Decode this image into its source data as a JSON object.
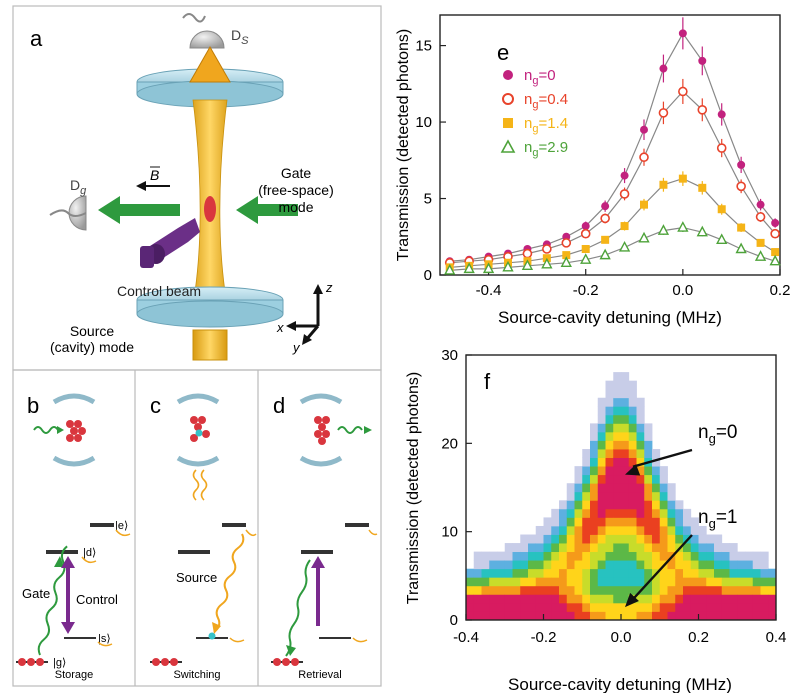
{
  "panels": {
    "a": {
      "letter": "a",
      "detector_source": "D",
      "detector_source_sub": "S",
      "detector_gate": "D",
      "detector_gate_sub": "g",
      "b_field": "B",
      "gate_label": [
        "Gate",
        "(free-space)",
        "mode"
      ],
      "control_beam": "Control beam",
      "source_label": [
        "Source",
        "(cavity) mode"
      ],
      "axis_z": "z",
      "axis_x": "x",
      "axis_y": "y"
    },
    "b": {
      "letter": "b",
      "caption": "Storage",
      "gate": "Gate",
      "control": "Control",
      "level_e": "|e⟩",
      "level_d": "|d⟩",
      "level_s": "|s⟩",
      "level_g": "|g⟩"
    },
    "c": {
      "letter": "c",
      "caption": "Switching",
      "source": "Source"
    },
    "d": {
      "letter": "d",
      "caption": "Retrieval"
    }
  },
  "chart_data": [
    {
      "panel": "e",
      "type": "scatter",
      "ylabel": "Transmission (detected photons)",
      "xlabel": "Source-cavity detuning (MHz)",
      "xlim": [
        -0.5,
        0.2
      ],
      "ylim": [
        0,
        17
      ],
      "xticks": [
        "-0.4",
        "-0.2",
        "0.0",
        "0.2"
      ],
      "yticks": [
        "0",
        "5",
        "10",
        "15"
      ],
      "legend_position": "top-left",
      "x": [
        -0.48,
        -0.44,
        -0.4,
        -0.36,
        -0.32,
        -0.28,
        -0.24,
        -0.2,
        -0.16,
        -0.12,
        -0.08,
        -0.04,
        0.0,
        0.04,
        0.08,
        0.12,
        0.16,
        0.19
      ],
      "series": [
        {
          "name": "n",
          "name_sub": "g",
          "name_value": "=0",
          "color": "#c2227e",
          "marker": "filled-circle",
          "values": [
            0.9,
            1.0,
            1.2,
            1.4,
            1.7,
            2.0,
            2.5,
            3.2,
            4.5,
            6.5,
            9.5,
            13.5,
            15.8,
            14.0,
            10.5,
            7.2,
            4.6,
            3.4
          ]
        },
        {
          "name": "n",
          "name_sub": "g",
          "name_value": "=0.4",
          "color": "#e8432b",
          "marker": "open-circle",
          "values": [
            0.8,
            0.9,
            1.0,
            1.2,
            1.4,
            1.7,
            2.1,
            2.7,
            3.7,
            5.3,
            7.7,
            10.6,
            12.0,
            10.8,
            8.3,
            5.8,
            3.8,
            2.7
          ]
        },
        {
          "name": "n",
          "name_sub": "g",
          "name_value": "=1.4",
          "color": "#f5b417",
          "marker": "filled-square",
          "values": [
            0.5,
            0.6,
            0.7,
            0.8,
            0.9,
            1.1,
            1.3,
            1.7,
            2.3,
            3.2,
            4.6,
            5.9,
            6.3,
            5.7,
            4.3,
            3.1,
            2.1,
            1.5
          ]
        },
        {
          "name": "n",
          "name_sub": "g",
          "name_value": "=2.9",
          "color": "#4ea33a",
          "marker": "open-triangle",
          "values": [
            0.3,
            0.4,
            0.4,
            0.5,
            0.6,
            0.7,
            0.8,
            1.0,
            1.3,
            1.8,
            2.4,
            2.9,
            3.1,
            2.8,
            2.3,
            1.7,
            1.2,
            0.9
          ]
        }
      ]
    },
    {
      "panel": "f",
      "type": "heatmap",
      "ylabel": "Transmission (detected photons)",
      "xlabel": "Source-cavity detuning (MHz)",
      "xlim": [
        -0.4,
        0.4
      ],
      "ylim": [
        0,
        30
      ],
      "xticks": [
        "-0.4",
        "-0.2",
        "0.0",
        "0.2",
        "0.4"
      ],
      "yticks": [
        "0",
        "10",
        "20",
        "30"
      ],
      "colormap": [
        "#ffffff",
        "#c8cde8",
        "#5db0e0",
        "#27c2c0",
        "#5cb847",
        "#c8dc2a",
        "#ffd41a",
        "#f59a1a",
        "#ea4020",
        "#d81b60"
      ],
      "annotations": [
        {
          "label": "n",
          "sub": "g",
          "value": "=0",
          "x": 0.0,
          "y": 16
        },
        {
          "label": "n",
          "sub": "g",
          "value": "=1",
          "x": 0.0,
          "y": 1
        }
      ]
    }
  ]
}
